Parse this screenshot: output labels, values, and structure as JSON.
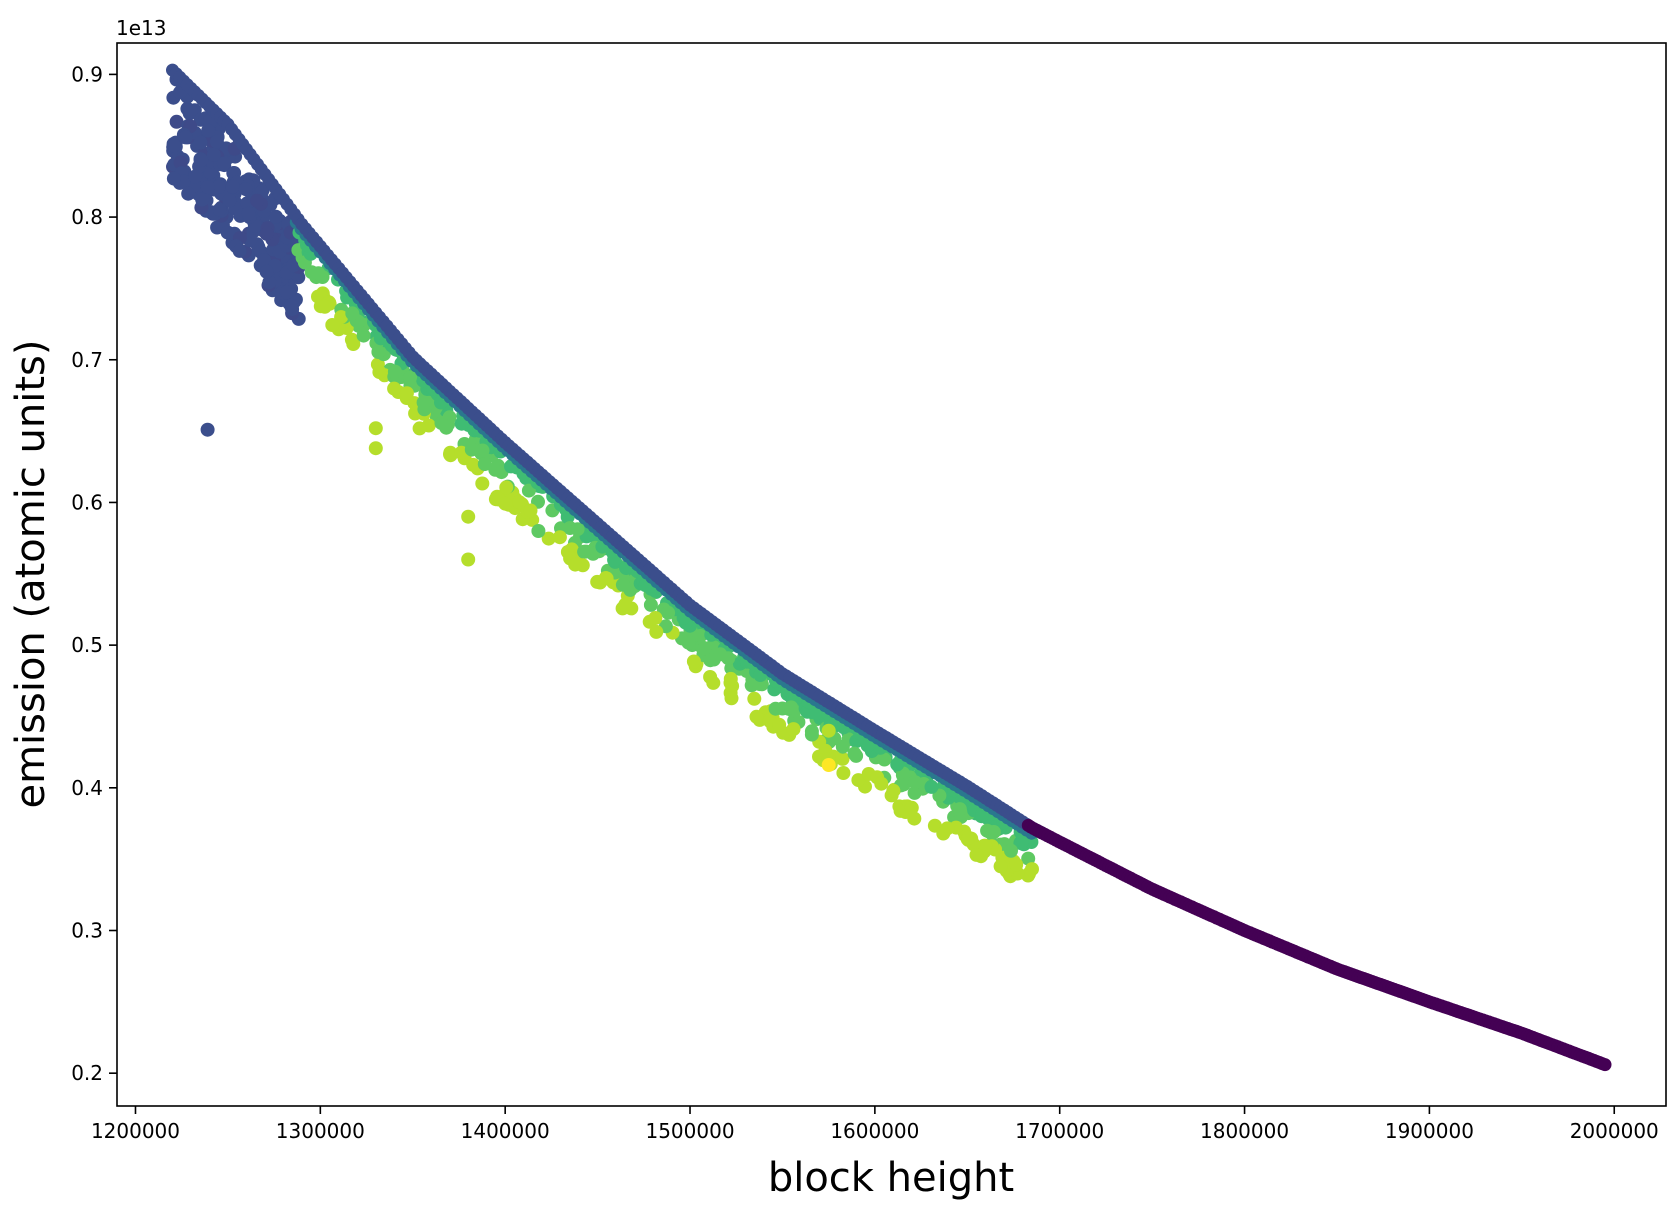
{
  "chart_data": {
    "type": "scatter",
    "title": "",
    "xlabel": "block height",
    "ylabel": "emission (atomic units)",
    "y_offset_label": "1e13",
    "xlim": [
      1190000,
      2028000
    ],
    "ylim": [
      0.177,
      0.922
    ],
    "x_ticks": [
      1200000,
      1300000,
      1400000,
      1500000,
      1600000,
      1700000,
      1800000,
      1900000,
      2000000
    ],
    "x_tick_labels": [
      "1200000",
      "1300000",
      "1400000",
      "1500000",
      "1600000",
      "1700000",
      "1800000",
      "1900000",
      "2000000"
    ],
    "y_ticks": [
      0.2,
      0.3,
      0.4,
      0.5,
      0.6,
      0.7,
      0.8,
      0.9
    ],
    "y_tick_labels": [
      "0.2",
      "0.3",
      "0.4",
      "0.5",
      "0.6",
      "0.7",
      "0.8",
      "0.9"
    ],
    "grid": false,
    "colormap": "viridis",
    "colors": {
      "dark_purple": "#440154",
      "indigo": "#3b4e8c",
      "teal": "#2a788e",
      "green": "#5ec962",
      "lime": "#b5de2b",
      "yellow": "#fde725"
    },
    "upper_envelope": [
      [
        1220000,
        0.903
      ],
      [
        1250000,
        0.865
      ],
      [
        1290000,
        0.795
      ],
      [
        1350000,
        0.702
      ],
      [
        1400000,
        0.642
      ],
      [
        1450000,
        0.585
      ],
      [
        1500000,
        0.528
      ],
      [
        1550000,
        0.48
      ],
      [
        1600000,
        0.44
      ],
      [
        1650000,
        0.401
      ],
      [
        1685000,
        0.372
      ],
      [
        1700000,
        0.362
      ],
      [
        1750000,
        0.329
      ],
      [
        1800000,
        0.3
      ],
      [
        1850000,
        0.273
      ],
      [
        1900000,
        0.25
      ],
      [
        1950000,
        0.228
      ],
      [
        1995000,
        0.206
      ]
    ],
    "early_block_range": {
      "x": [
        1220000,
        1290000
      ],
      "y_top": [
        0.903,
        0.79
      ],
      "y_bottom": [
        0.828,
        0.724
      ]
    },
    "outliers": [
      {
        "x": 1239000,
        "y": 0.651,
        "color": "indigo"
      },
      {
        "x": 1330000,
        "y": 0.652,
        "color": "lime"
      },
      {
        "x": 1330000,
        "y": 0.638,
        "color": "lime"
      },
      {
        "x": 1380000,
        "y": 0.59,
        "color": "lime"
      },
      {
        "x": 1380000,
        "y": 0.56,
        "color": "lime"
      },
      {
        "x": 1418000,
        "y": 0.58,
        "color": "green"
      },
      {
        "x": 1575000,
        "y": 0.44,
        "color": "lime"
      },
      {
        "x": 1575000,
        "y": 0.42,
        "color": "lime"
      },
      {
        "x": 1575000,
        "y": 0.416,
        "color": "yellow"
      },
      {
        "x": 1589000,
        "y": 0.424,
        "color": "green"
      },
      {
        "x": 1610000,
        "y": 0.398,
        "color": "lime"
      },
      {
        "x": 1620000,
        "y": 0.386,
        "color": "lime"
      },
      {
        "x": 1637000,
        "y": 0.368,
        "color": "lime"
      },
      {
        "x": 1655000,
        "y": 0.353,
        "color": "lime"
      },
      {
        "x": 1668000,
        "y": 0.345,
        "color": "lime"
      },
      {
        "x": 1685000,
        "y": 0.343,
        "color": "lime"
      }
    ]
  }
}
